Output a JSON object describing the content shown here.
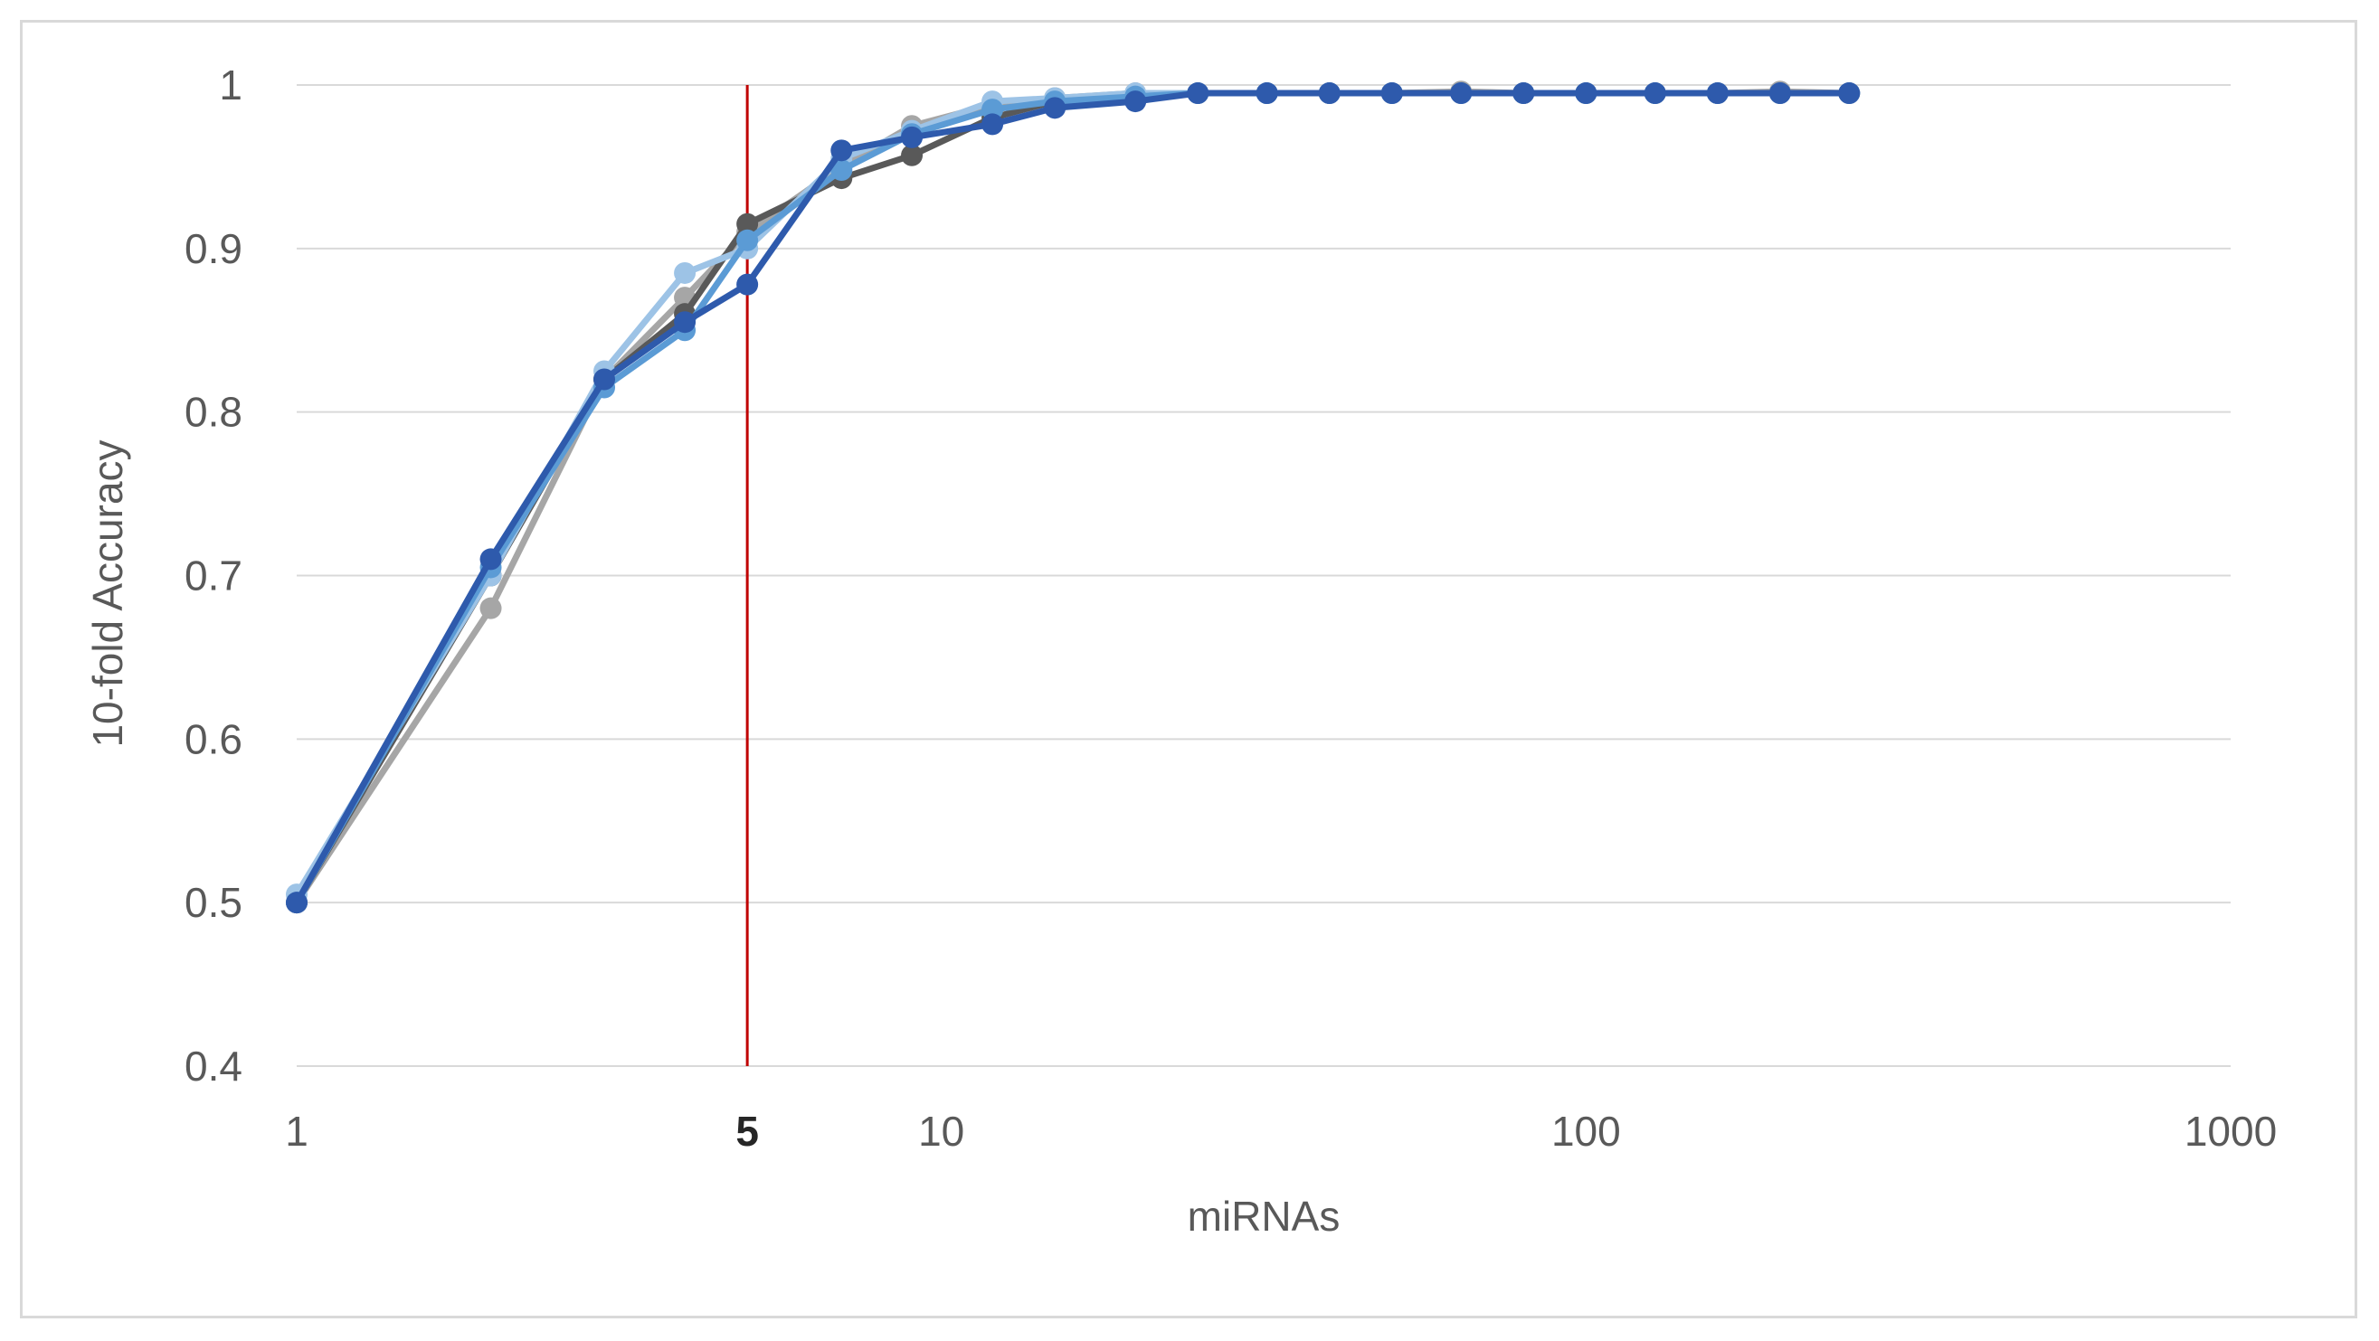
{
  "chart_data": {
    "type": "line",
    "title": "",
    "xlabel": "miRNAs",
    "ylabel": "10-fold Accuracy",
    "x_scale": "log",
    "xlim": [
      1,
      1000
    ],
    "ylim": [
      0.4,
      1.0
    ],
    "x_ticks": [
      {
        "value": 1,
        "label": "1"
      },
      {
        "value": 5,
        "label": "5",
        "bold": true
      },
      {
        "value": 10,
        "label": "10"
      },
      {
        "value": 100,
        "label": "100"
      },
      {
        "value": 1000,
        "label": "1000"
      }
    ],
    "y_ticks": [
      {
        "value": 0.4,
        "label": "0.4"
      },
      {
        "value": 0.5,
        "label": "0.5"
      },
      {
        "value": 0.6,
        "label": "0.6"
      },
      {
        "value": 0.7,
        "label": "0.7"
      },
      {
        "value": 0.8,
        "label": "0.8"
      },
      {
        "value": 0.9,
        "label": "0.9"
      },
      {
        "value": 1.0,
        "label": "1"
      }
    ],
    "grid": "horizontal",
    "legend": "none",
    "reference_line": {
      "x": 5,
      "color": "#c00000"
    },
    "x": [
      1,
      2,
      3,
      4,
      5,
      7,
      9,
      12,
      15,
      20,
      25,
      32,
      40,
      50,
      64,
      80,
      100,
      128,
      160,
      200,
      256
    ],
    "series": [
      {
        "color": "#a6a6a6",
        "values": [
          0.5,
          0.68,
          0.82,
          0.87,
          0.91,
          0.95,
          0.975,
          0.988,
          0.992,
          0.995,
          0.995,
          0.995,
          0.995,
          0.995,
          0.996,
          0.995,
          0.995,
          0.995,
          0.995,
          0.996,
          0.995
        ]
      },
      {
        "color": "#595959",
        "values": [
          0.5,
          0.7,
          0.82,
          0.86,
          0.915,
          0.943,
          0.957,
          0.98,
          0.99,
          0.993,
          0.995,
          0.995,
          0.995,
          0.995,
          0.995,
          0.995,
          0.995,
          0.995,
          0.995,
          0.995,
          0.995
        ]
      },
      {
        "color": "#9dc3e6",
        "values": [
          0.505,
          0.7,
          0.825,
          0.885,
          0.9,
          0.955,
          0.972,
          0.99,
          0.992,
          0.995,
          0.995,
          0.995,
          0.995,
          0.995,
          0.995,
          0.995,
          0.995,
          0.995,
          0.995,
          0.995,
          0.995
        ]
      },
      {
        "color": "#5b9bd5",
        "values": [
          0.5,
          0.705,
          0.815,
          0.85,
          0.905,
          0.948,
          0.97,
          0.985,
          0.99,
          0.993,
          0.995,
          0.995,
          0.995,
          0.995,
          0.995,
          0.995,
          0.995,
          0.995,
          0.995,
          0.995,
          0.995
        ]
      },
      {
        "color": "#2e5aac",
        "values": [
          0.5,
          0.71,
          0.82,
          0.855,
          0.878,
          0.96,
          0.968,
          0.976,
          0.986,
          0.99,
          0.995,
          0.995,
          0.995,
          0.995,
          0.995,
          0.995,
          0.995,
          0.995,
          0.995,
          0.995,
          0.995
        ]
      }
    ]
  }
}
